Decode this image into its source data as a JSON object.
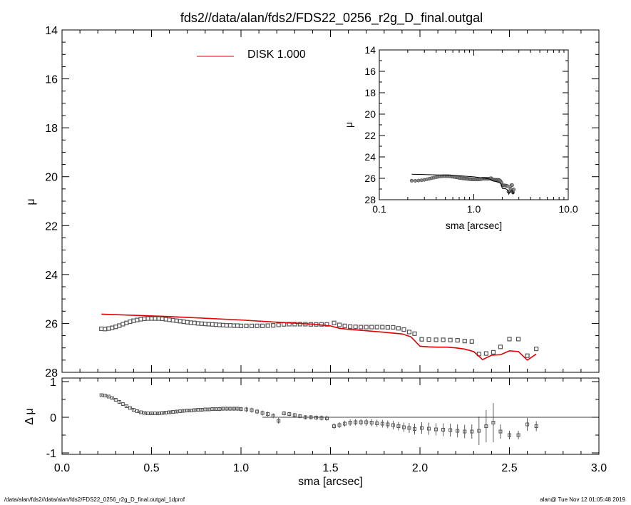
{
  "title": "fds2//data/alan/fds2/FDS22_0256_r2g_D_final.outgal",
  "footer": {
    "left": "/data/alan/fds2//data/alan/fds2/FDS22_0256_r2g_D_final.outgal_1dprof",
    "right": "alan@  Tue Nov 12 01:05:48 2019"
  },
  "colors": {
    "model": "#e00000",
    "data": "#555555",
    "axes": "#000000"
  },
  "chart_data": [
    {
      "name": "main-profile",
      "type": "scatter",
      "xlabel": "",
      "ylabel": "μ",
      "xlim": [
        0.0,
        3.0
      ],
      "ylim": [
        28,
        14
      ],
      "y_inverted": true,
      "yticks": [
        "14",
        "16",
        "18",
        "20",
        "22",
        "24",
        "26",
        "28"
      ],
      "legend": {
        "label": "DISK  1.000",
        "placement": "top-center"
      },
      "data_points": {
        "x": [
          0.22,
          0.24,
          0.26,
          0.28,
          0.3,
          0.32,
          0.34,
          0.36,
          0.38,
          0.4,
          0.42,
          0.44,
          0.46,
          0.48,
          0.5,
          0.52,
          0.54,
          0.56,
          0.58,
          0.6,
          0.62,
          0.64,
          0.66,
          0.68,
          0.7,
          0.72,
          0.74,
          0.76,
          0.78,
          0.8,
          0.82,
          0.84,
          0.86,
          0.88,
          0.9,
          0.92,
          0.94,
          0.96,
          0.98,
          1.0,
          1.03,
          1.06,
          1.09,
          1.12,
          1.15,
          1.18,
          1.21,
          1.24,
          1.27,
          1.3,
          1.33,
          1.36,
          1.39,
          1.42,
          1.45,
          1.48,
          1.52,
          1.55,
          1.58,
          1.61,
          1.64,
          1.67,
          1.7,
          1.73,
          1.76,
          1.79,
          1.82,
          1.85,
          1.88,
          1.91,
          1.94,
          1.97,
          2.01,
          2.05,
          2.09,
          2.13,
          2.17,
          2.21,
          2.25,
          2.29,
          2.33,
          2.37,
          2.41,
          2.45,
          2.5,
          2.55,
          2.6,
          2.65
        ],
        "y": [
          26.22,
          26.23,
          26.21,
          26.18,
          26.14,
          26.09,
          26.03,
          25.98,
          25.93,
          25.89,
          25.86,
          25.83,
          25.81,
          25.8,
          25.8,
          25.8,
          25.8,
          25.81,
          25.83,
          25.85,
          25.87,
          25.89,
          25.91,
          25.93,
          25.95,
          25.97,
          25.98,
          26.0,
          26.01,
          26.02,
          26.03,
          26.04,
          26.05,
          26.06,
          26.07,
          26.08,
          26.08,
          26.09,
          26.09,
          26.1,
          26.1,
          26.1,
          26.1,
          26.1,
          26.09,
          26.08,
          26.06,
          26.04,
          26.03,
          26.03,
          26.03,
          26.03,
          26.04,
          26.04,
          26.04,
          26.04,
          25.98,
          26.06,
          26.1,
          26.13,
          26.14,
          26.15,
          26.15,
          26.15,
          26.15,
          26.15,
          26.16,
          26.16,
          26.2,
          26.25,
          26.35,
          26.42,
          26.65,
          26.66,
          26.67,
          26.67,
          26.68,
          26.69,
          26.72,
          26.74,
          27.25,
          27.23,
          27.18,
          26.96,
          26.64,
          26.64,
          27.32,
          27.04
        ]
      },
      "model_line": {
        "label": "DISK  1.000",
        "x": [
          0.22,
          0.6,
          1.0,
          1.2,
          1.4,
          1.5,
          1.55,
          1.6,
          1.7,
          1.8,
          1.9,
          1.95,
          2.0,
          2.05,
          2.1,
          2.15,
          2.2,
          2.25,
          2.3,
          2.35,
          2.4,
          2.45,
          2.5,
          2.55,
          2.6,
          2.65
        ],
        "y": [
          25.62,
          25.72,
          25.86,
          25.95,
          26.03,
          26.1,
          26.2,
          26.24,
          26.3,
          26.36,
          26.43,
          26.55,
          26.93,
          26.96,
          26.97,
          26.97,
          27.0,
          27.05,
          27.15,
          27.48,
          27.3,
          27.28,
          27.12,
          27.15,
          27.5,
          27.25
        ]
      },
      "inset": {
        "type": "line",
        "xlabel": "sma [arcsec]",
        "ylabel": "μ",
        "xscale": "log",
        "xlim": [
          0.1,
          10.0
        ],
        "ylim": [
          28,
          14
        ],
        "xticks": [
          "0.1",
          "1.0",
          "10.0"
        ],
        "yticks": [
          "14",
          "16",
          "18",
          "20",
          "22",
          "24",
          "26",
          "28"
        ]
      }
    },
    {
      "name": "residuals",
      "type": "scatter",
      "xlabel": "sma [arcsec]",
      "ylabel": "Δ μ",
      "xlim": [
        0.0,
        3.0
      ],
      "ylim": [
        -1,
        1
      ],
      "xticks": [
        "0.0",
        "0.5",
        "1.0",
        "1.5",
        "2.0",
        "2.5",
        "3.0"
      ],
      "yticks": [
        "1",
        "0",
        "-1"
      ],
      "zero_line": {
        "x": [
          1.12,
          3.0
        ],
        "y": 0
      },
      "points": {
        "x": [
          0.22,
          0.24,
          0.26,
          0.28,
          0.3,
          0.32,
          0.34,
          0.36,
          0.38,
          0.4,
          0.42,
          0.44,
          0.46,
          0.48,
          0.5,
          0.52,
          0.54,
          0.56,
          0.58,
          0.6,
          0.62,
          0.64,
          0.66,
          0.68,
          0.7,
          0.72,
          0.74,
          0.76,
          0.78,
          0.8,
          0.82,
          0.84,
          0.86,
          0.88,
          0.9,
          0.92,
          0.94,
          0.96,
          0.98,
          1.0,
          1.03,
          1.06,
          1.09,
          1.12,
          1.15,
          1.18,
          1.21,
          1.24,
          1.27,
          1.3,
          1.33,
          1.36,
          1.39,
          1.42,
          1.45,
          1.48,
          1.52,
          1.55,
          1.58,
          1.61,
          1.64,
          1.67,
          1.7,
          1.73,
          1.76,
          1.79,
          1.82,
          1.85,
          1.88,
          1.91,
          1.94,
          1.97,
          2.01,
          2.05,
          2.09,
          2.13,
          2.17,
          2.21,
          2.25,
          2.29,
          2.33,
          2.37,
          2.41,
          2.45,
          2.5,
          2.55,
          2.6,
          2.65
        ],
        "y": [
          0.62,
          0.61,
          0.58,
          0.54,
          0.49,
          0.43,
          0.37,
          0.31,
          0.26,
          0.21,
          0.17,
          0.14,
          0.12,
          0.11,
          0.11,
          0.11,
          0.11,
          0.12,
          0.13,
          0.14,
          0.15,
          0.16,
          0.17,
          0.18,
          0.19,
          0.19,
          0.2,
          0.21,
          0.21,
          0.22,
          0.22,
          0.23,
          0.23,
          0.23,
          0.24,
          0.24,
          0.24,
          0.24,
          0.24,
          0.23,
          0.22,
          0.2,
          0.16,
          0.12,
          0.09,
          0.04,
          -0.1,
          0.11,
          0.09,
          0.06,
          0.03,
          0.0,
          0.0,
          -0.01,
          -0.02,
          -0.03,
          -0.25,
          -0.22,
          -0.18,
          -0.15,
          -0.14,
          -0.14,
          -0.14,
          -0.15,
          -0.17,
          -0.18,
          -0.2,
          -0.22,
          -0.25,
          -0.28,
          -0.3,
          -0.33,
          -0.3,
          -0.32,
          -0.34,
          -0.35,
          -0.36,
          -0.38,
          -0.4,
          -0.4,
          -0.38,
          -0.25,
          -0.15,
          -0.4,
          -0.5,
          -0.5,
          -0.2,
          -0.25
        ],
        "err": [
          0.02,
          0.02,
          0.02,
          0.02,
          0.02,
          0.02,
          0.02,
          0.02,
          0.02,
          0.02,
          0.02,
          0.02,
          0.02,
          0.02,
          0.02,
          0.02,
          0.03,
          0.03,
          0.03,
          0.03,
          0.03,
          0.03,
          0.04,
          0.04,
          0.04,
          0.04,
          0.04,
          0.05,
          0.05,
          0.05,
          0.05,
          0.05,
          0.05,
          0.06,
          0.06,
          0.06,
          0.06,
          0.06,
          0.06,
          0.06,
          0.07,
          0.07,
          0.07,
          0.07,
          0.07,
          0.07,
          0.08,
          0.06,
          0.06,
          0.06,
          0.06,
          0.06,
          0.06,
          0.06,
          0.07,
          0.07,
          0.08,
          0.08,
          0.08,
          0.09,
          0.09,
          0.09,
          0.1,
          0.1,
          0.1,
          0.11,
          0.11,
          0.12,
          0.12,
          0.13,
          0.14,
          0.15,
          0.16,
          0.17,
          0.17,
          0.18,
          0.18,
          0.18,
          0.19,
          0.2,
          0.4,
          0.45,
          0.55,
          0.2,
          0.12,
          0.12,
          0.18,
          0.14
        ]
      }
    }
  ]
}
